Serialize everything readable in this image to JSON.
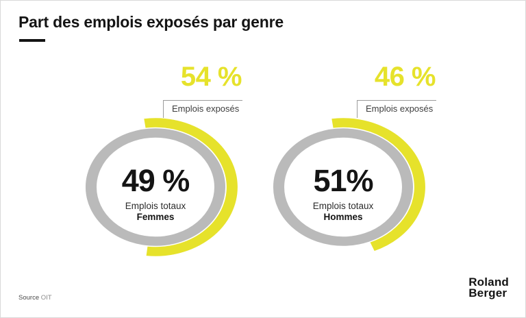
{
  "page": {
    "title": "Part des emplois exposés par genre"
  },
  "colors": {
    "accent_yellow": "#E6E22B",
    "ring_gray": "#BABABA",
    "text_dark": "#141414"
  },
  "chart_data": {
    "type": "donut-pair",
    "title": "Part des emplois exposés par genre",
    "legend_note": "Arc jaune = part des emplois exposés; anneau gris = emplois totaux",
    "charts": [
      {
        "group": "Femmes",
        "exposed_pct": 54,
        "exposed_display": "54 %",
        "exposed_label": "Emplois exposés",
        "total_pct": 49,
        "total_display": "49 %",
        "total_label": "Emplois totaux"
      },
      {
        "group": "Hommes",
        "exposed_pct": 46,
        "exposed_display": "46 %",
        "exposed_label": "Emplois exposés",
        "total_pct": 51,
        "total_display": "51%",
        "total_label": "Emplois totaux"
      }
    ]
  },
  "source": {
    "label": "Source",
    "value": "OIT"
  },
  "logo": {
    "line1": "Roland",
    "line2": "Berger"
  }
}
